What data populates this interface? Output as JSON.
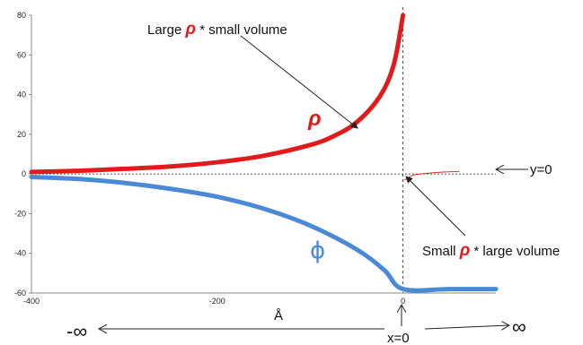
{
  "chart_data": {
    "type": "line",
    "xlim": [
      -400,
      100
    ],
    "ylim": [
      -60,
      80
    ],
    "x_ticks": [
      "-400",
      "-200",
      "0"
    ],
    "y_ticks": [
      "80",
      "60",
      "40",
      "20",
      "0",
      "-20",
      "-40",
      "-60"
    ],
    "x_tick_values": [
      -400,
      -200,
      0
    ],
    "y_tick_values": [
      80,
      60,
      40,
      20,
      0,
      -20,
      -40,
      -60
    ],
    "series": [
      {
        "name": "ρ",
        "color": "#e11b1b",
        "x": [
          -400,
          -350,
          -300,
          -250,
          -200,
          -150,
          -100,
          -75,
          -50,
          -25,
          -10,
          0
        ],
        "y": [
          1,
          1.6,
          2.6,
          3.8,
          5.9,
          9.2,
          14.6,
          19,
          26,
          39,
          55,
          80
        ]
      },
      {
        "name": "ϕ",
        "color": "#4a8ad4",
        "x": [
          -400,
          -350,
          -300,
          -250,
          -200,
          -150,
          -100,
          -50,
          -20,
          0,
          50,
          100
        ],
        "y": [
          -1.5,
          -2.5,
          -4.5,
          -7.5,
          -11.5,
          -17.5,
          -26,
          -38,
          -48.5,
          -58,
          -58,
          -58
        ]
      },
      {
        "name": "",
        "color": "#e11b1b",
        "style": "thin-dashed",
        "x": [
          2,
          5,
          12,
          25,
          45,
          60
        ],
        "y": [
          -3,
          -2,
          -0.5,
          0.3,
          1,
          1.2
        ]
      }
    ],
    "reference_lines": {
      "horizontal_y": 0,
      "vertical_x": 0
    }
  },
  "labels": {
    "large_rho_prefix": "Large ",
    "rho_symbol": "ρ",
    "large_rho_suffix": " * small volume",
    "curve_rho": "ρ",
    "curve_phi": "ϕ",
    "small_rho_prefix": "Small ",
    "small_rho_suffix": " * large volume",
    "y_zero": "y=0",
    "x_unit": "Å",
    "neg_inf": "-∞",
    "pos_inf": "∞",
    "x_zero": "x=0"
  }
}
